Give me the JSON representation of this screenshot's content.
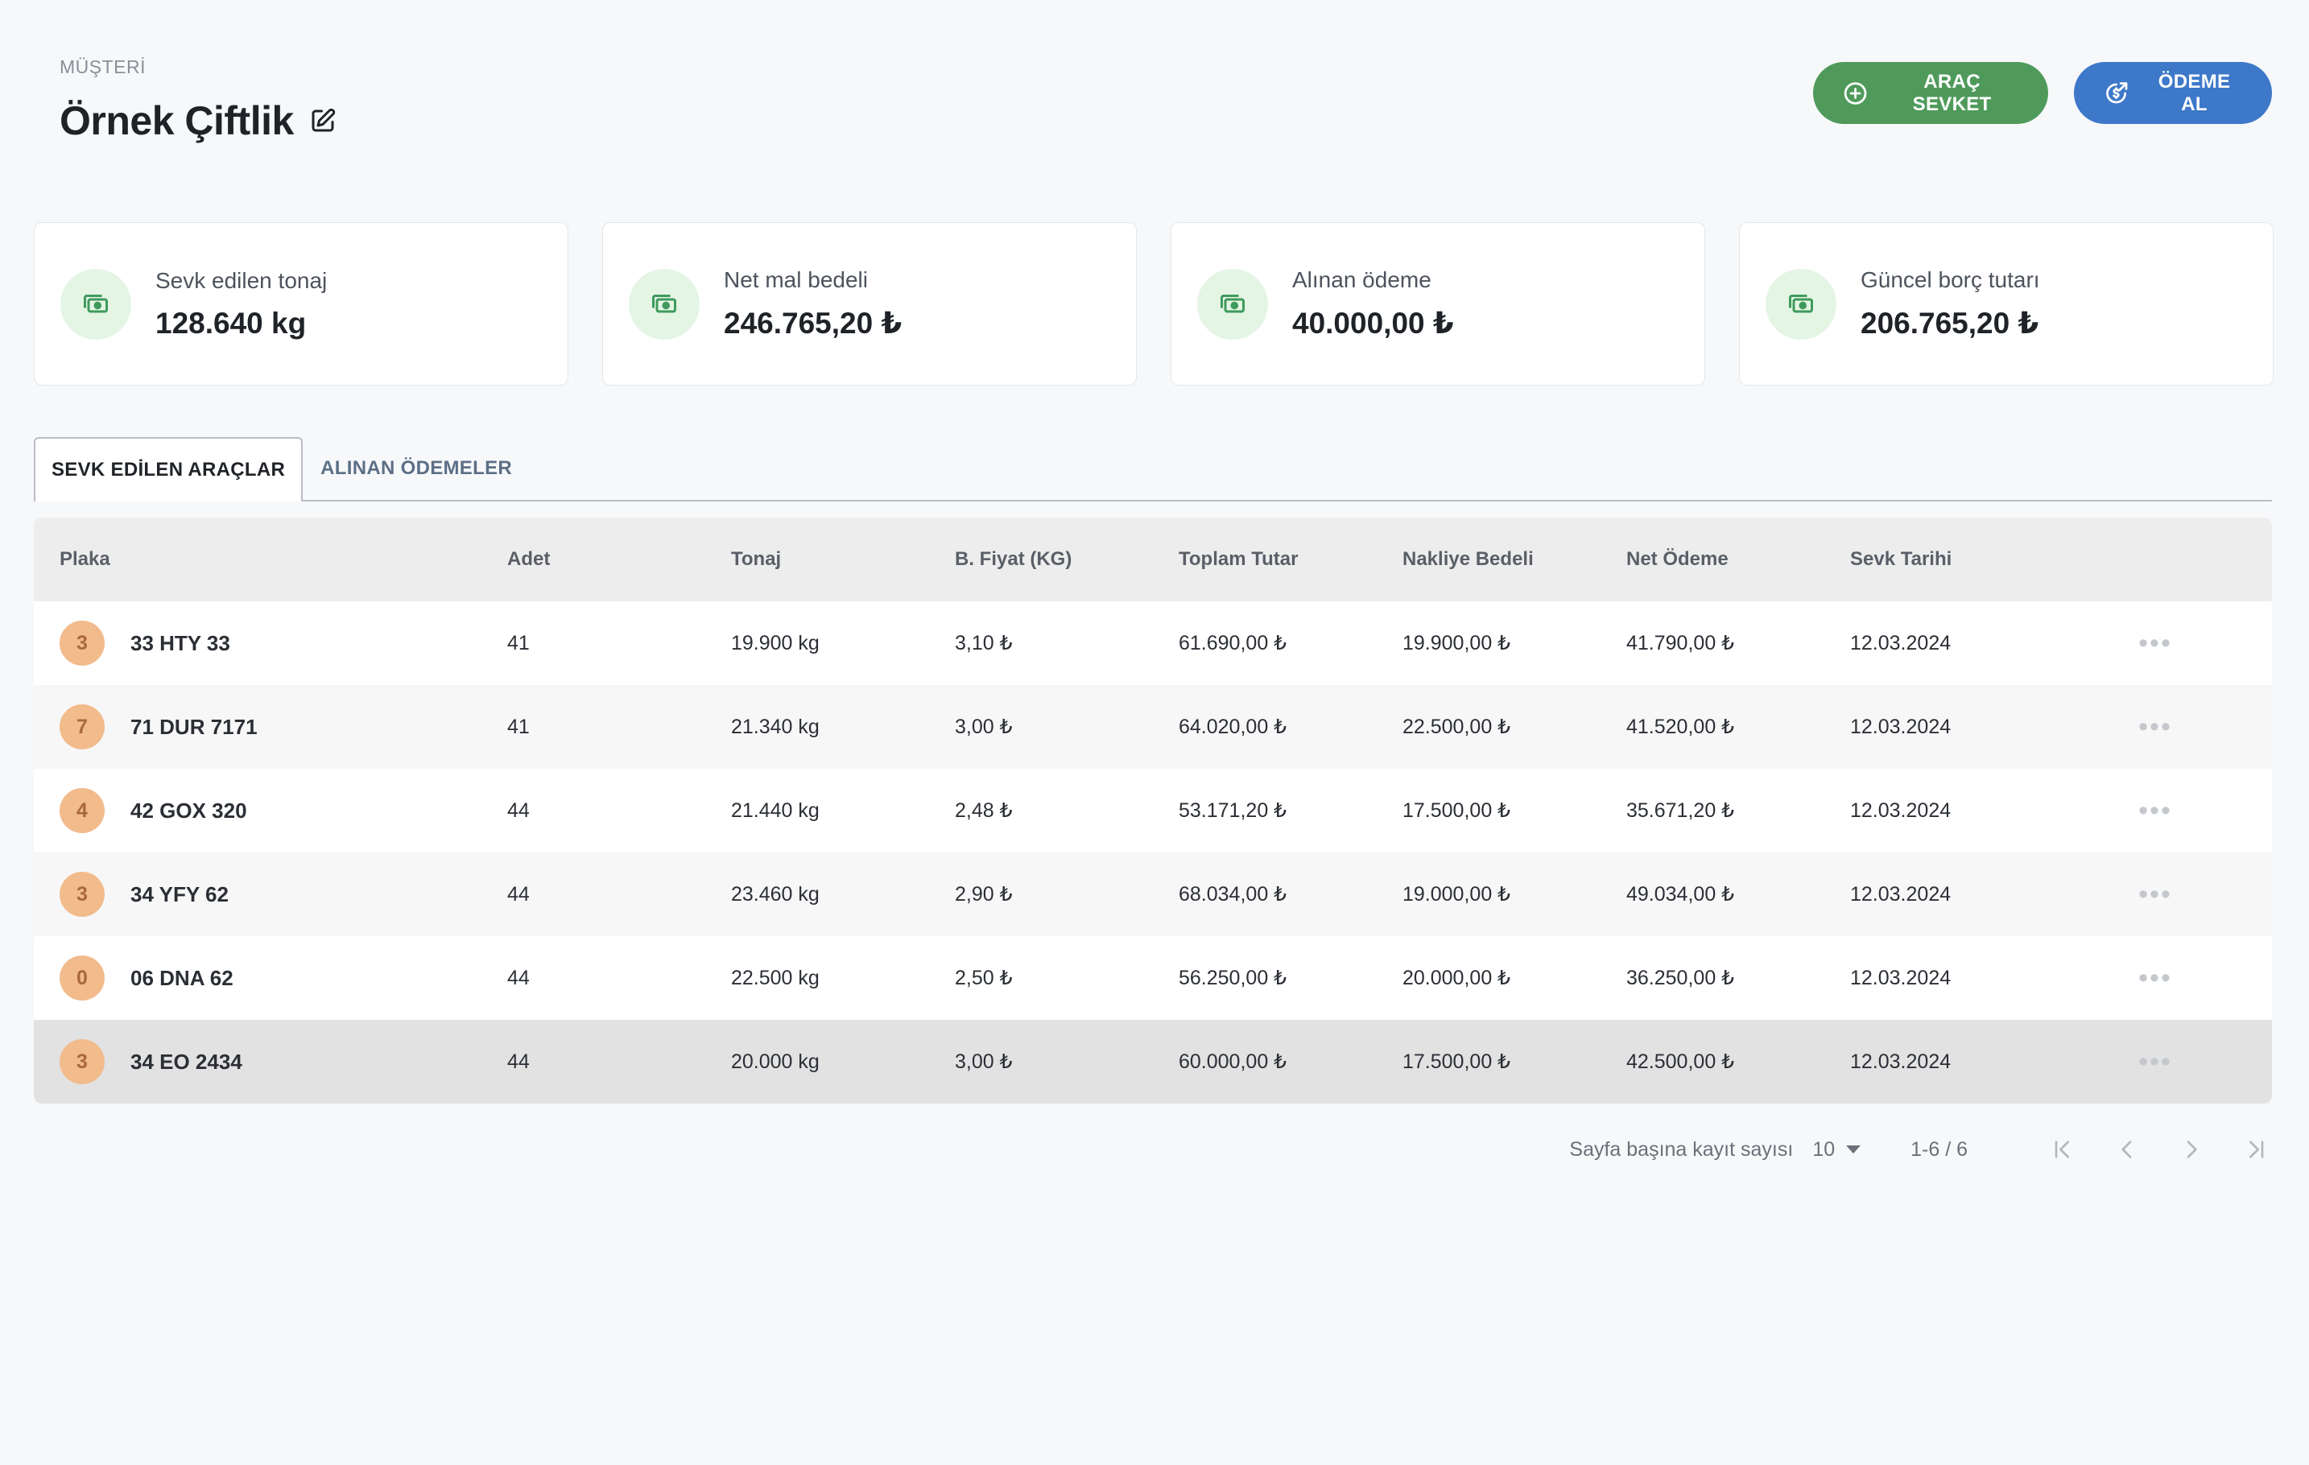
{
  "header": {
    "overline": "MÜŞTERİ",
    "title": "Örnek Çiftlik"
  },
  "actions": {
    "ship_label": "ARAÇ SEVKET",
    "payment_label": "ÖDEME AL"
  },
  "stats": [
    {
      "label": "Sevk edilen tonaj",
      "value": "128.640 kg",
      "icon": "money-icon"
    },
    {
      "label": "Net mal bedeli",
      "value": "246.765,20 ₺",
      "icon": "money-icon"
    },
    {
      "label": "Alınan ödeme",
      "value": "40.000,00 ₺",
      "icon": "money-icon"
    },
    {
      "label": "Güncel borç tutarı",
      "value": "206.765,20 ₺",
      "icon": "money-icon"
    }
  ],
  "tabs": [
    {
      "label": "SEVK EDİLEN ARAÇLAR",
      "active": true
    },
    {
      "label": "ALINAN ÖDEMELER",
      "active": false
    }
  ],
  "table": {
    "columns": [
      "Plaka",
      "Adet",
      "Tonaj",
      "B. Fiyat (KG)",
      "Toplam Tutar",
      "Nakliye Bedeli",
      "Net Ödeme",
      "Sevk Tarihi"
    ],
    "rows": [
      {
        "badge": "3",
        "plate": "33 HTY 33",
        "adet": "41",
        "tonaj": "19.900 kg",
        "fiyat": "3,10 ₺",
        "toplam": "61.690,00 ₺",
        "nakliye": "19.900,00 ₺",
        "net": "41.790,00 ₺",
        "tarih": "12.03.2024"
      },
      {
        "badge": "7",
        "plate": "71 DUR 7171",
        "adet": "41",
        "tonaj": "21.340 kg",
        "fiyat": "3,00 ₺",
        "toplam": "64.020,00 ₺",
        "nakliye": "22.500,00 ₺",
        "net": "41.520,00 ₺",
        "tarih": "12.03.2024"
      },
      {
        "badge": "4",
        "plate": "42 GOX 320",
        "adet": "44",
        "tonaj": "21.440 kg",
        "fiyat": "2,48 ₺",
        "toplam": "53.171,20 ₺",
        "nakliye": "17.500,00 ₺",
        "net": "35.671,20 ₺",
        "tarih": "12.03.2024"
      },
      {
        "badge": "3",
        "plate": "34 YFY 62",
        "adet": "44",
        "tonaj": "23.460 kg",
        "fiyat": "2,90 ₺",
        "toplam": "68.034,00 ₺",
        "nakliye": "19.000,00 ₺",
        "net": "49.034,00 ₺",
        "tarih": "12.03.2024"
      },
      {
        "badge": "0",
        "plate": "06 DNA 62",
        "adet": "44",
        "tonaj": "22.500 kg",
        "fiyat": "2,50 ₺",
        "toplam": "56.250,00 ₺",
        "nakliye": "20.000,00 ₺",
        "net": "36.250,00 ₺",
        "tarih": "12.03.2024"
      },
      {
        "badge": "3",
        "plate": "34 EO 2434",
        "adet": "44",
        "tonaj": "20.000 kg",
        "fiyat": "3,00 ₺",
        "toplam": "60.000,00 ₺",
        "nakliye": "17.500,00 ₺",
        "net": "42.500,00 ₺",
        "tarih": "12.03.2024"
      }
    ]
  },
  "pagination": {
    "rows_per_page_label": "Sayfa başına kayıt sayısı",
    "rows_per_page_value": "10",
    "range": "1-6 / 6"
  },
  "colors": {
    "ship_button": "#4f9a5b",
    "payment_button": "#3d78c9",
    "badge": "#f2bb8c",
    "icon_bg": "#e4f5e4",
    "icon": "#3f9a5c"
  }
}
